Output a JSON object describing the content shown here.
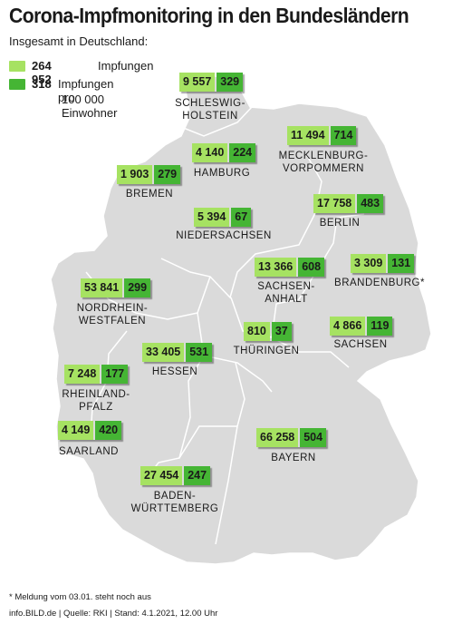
{
  "title": "Corona-Impfmonitoring in den Bundesländern",
  "subtitle": "Insgesamt in Deutschland:",
  "legend": {
    "total_value": "264 952",
    "total_label": "Impfungen",
    "density_value": "318",
    "density_label": "Impfungen pro",
    "density_label_cont": "100 000 Einwohner",
    "colors": {
      "impfungen": "#a6e262",
      "pro_100000": "#45b534"
    }
  },
  "map_color": "#dadada",
  "map_border_color": "#ffffff",
  "chart_data": {
    "type": "table",
    "columns": [
      "Impfungen",
      "Impfungen pro 100 000 Einwohner"
    ],
    "rows": [
      {
        "state": "SCHLESWIG-HOLSTEIN",
        "lines": [
          "SCHLESWIG-",
          "HOLSTEIN"
        ],
        "impfungen": "9 557",
        "pro_100000": "329"
      },
      {
        "state": "MECKLENBURG-VORPOMMERN",
        "lines": [
          "MECKLENBURG-",
          "VORPOMMERN"
        ],
        "impfungen": "11 494",
        "pro_100000": "714"
      },
      {
        "state": "HAMBURG",
        "lines": [
          "HAMBURG"
        ],
        "impfungen": "4 140",
        "pro_100000": "224"
      },
      {
        "state": "BREMEN",
        "lines": [
          "BREMEN"
        ],
        "impfungen": "1 903",
        "pro_100000": "279"
      },
      {
        "state": "BERLIN",
        "lines": [
          "BERLIN"
        ],
        "impfungen": "17 758",
        "pro_100000": "483"
      },
      {
        "state": "NIEDERSACHSEN",
        "lines": [
          "NIEDERSACHSEN"
        ],
        "impfungen": "5 394",
        "pro_100000": "67"
      },
      {
        "state": "SACHSEN-ANHALT",
        "lines": [
          "SACHSEN-",
          "ANHALT"
        ],
        "impfungen": "13 366",
        "pro_100000": "608"
      },
      {
        "state": "BRANDENBURG*",
        "lines": [
          "BRANDENBURG*"
        ],
        "impfungen": "3 309",
        "pro_100000": "131"
      },
      {
        "state": "NORDRHEIN-WESTFALEN",
        "lines": [
          "NORDRHEIN-",
          "WESTFALEN"
        ],
        "impfungen": "53 841",
        "pro_100000": "299"
      },
      {
        "state": "THÜRINGEN",
        "lines": [
          "THÜRINGEN"
        ],
        "impfungen": "810",
        "pro_100000": "37"
      },
      {
        "state": "SACHSEN",
        "lines": [
          "SACHSEN"
        ],
        "impfungen": "4 866",
        "pro_100000": "119"
      },
      {
        "state": "HESSEN",
        "lines": [
          "HESSEN"
        ],
        "impfungen": "33 405",
        "pro_100000": "531"
      },
      {
        "state": "RHEINLAND-PFALZ",
        "lines": [
          "RHEINLAND-",
          "PFALZ"
        ],
        "impfungen": "7 248",
        "pro_100000": "177"
      },
      {
        "state": "SAARLAND",
        "lines": [
          "SAARLAND"
        ],
        "impfungen": "4 149",
        "pro_100000": "420"
      },
      {
        "state": "BAYERN",
        "lines": [
          "BAYERN"
        ],
        "impfungen": "66 258",
        "pro_100000": "504"
      },
      {
        "state": "BADEN-WÜRTTEMBERG",
        "lines": [
          "BADEN-",
          "WÜRTTEMBERG"
        ],
        "impfungen": "27 454",
        "pro_100000": "247"
      }
    ]
  },
  "footnote": "* Meldung vom 03.01. steht noch aus",
  "source": "info.BILD.de | Quelle: RKI | Stand: 4.1.2021, 12.00 Uhr"
}
